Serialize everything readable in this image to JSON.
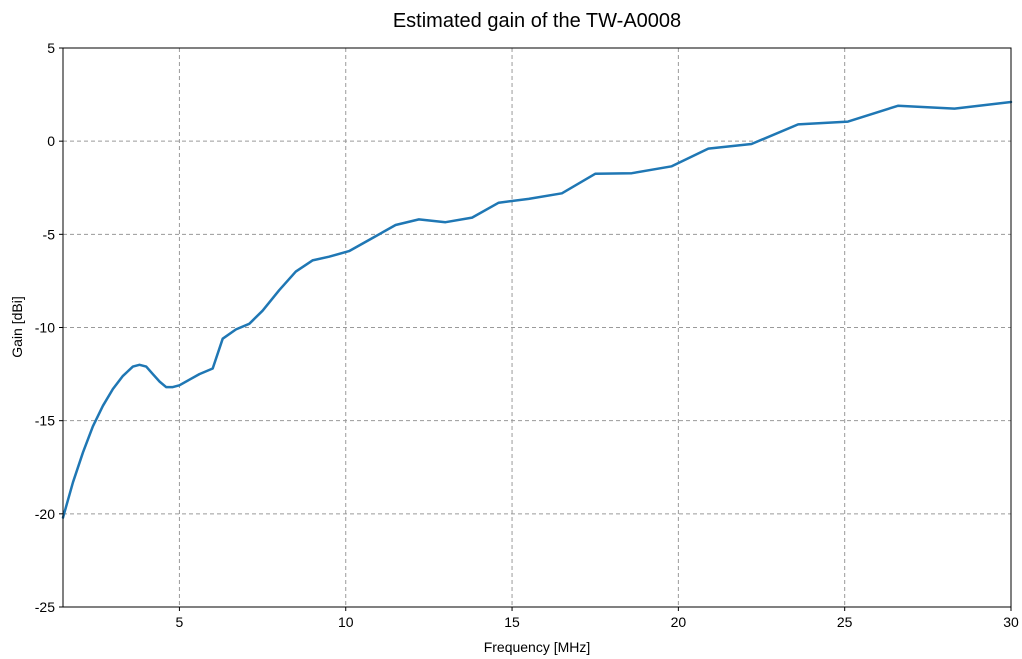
{
  "chart_data": {
    "type": "line",
    "title": "Estimated gain of the TW-A0008",
    "xlabel": "Frequency [MHz]",
    "ylabel": "Gain [dBi]",
    "xlim": [
      1.5,
      30
    ],
    "ylim": [
      -25,
      5
    ],
    "xticks": [
      5,
      10,
      15,
      20,
      25,
      30
    ],
    "yticks": [
      5,
      0,
      -5,
      -10,
      -15,
      -20,
      -25
    ],
    "grid": true,
    "series_color": "#1f77b4",
    "series": [
      {
        "x": [
          1.5,
          1.8,
          2.1,
          2.4,
          2.7,
          3.0,
          3.3,
          3.6,
          3.8,
          4.0,
          4.2,
          4.4,
          4.6,
          4.8,
          5.0,
          5.3,
          5.6,
          6.0,
          6.3,
          6.7,
          7.1,
          7.5,
          8.0,
          8.5,
          9.0,
          9.5,
          10.1,
          10.8,
          11.5,
          12.2,
          13.0,
          13.8,
          14.6,
          15.5,
          16.5,
          17.5,
          18.6,
          19.8,
          20.9,
          22.2,
          23.6,
          25.1,
          26.6,
          28.3,
          30.0
        ],
        "values": [
          -20.2,
          -18.3,
          -16.7,
          -15.3,
          -14.2,
          -13.3,
          -12.6,
          -12.1,
          -12.0,
          -12.1,
          -12.5,
          -12.9,
          -13.2,
          -13.2,
          -13.1,
          -12.8,
          -12.5,
          -12.2,
          -10.6,
          -10.1,
          -9.8,
          -9.1,
          -8.0,
          -7.0,
          -6.4,
          -6.2,
          -5.9,
          -5.2,
          -4.5,
          -4.2,
          -4.35,
          -4.1,
          -3.3,
          -3.1,
          -2.8,
          -1.75,
          -1.72,
          -1.35,
          -0.4,
          -0.15,
          0.9,
          1.05,
          1.9,
          1.75,
          2.1
        ]
      }
    ]
  }
}
